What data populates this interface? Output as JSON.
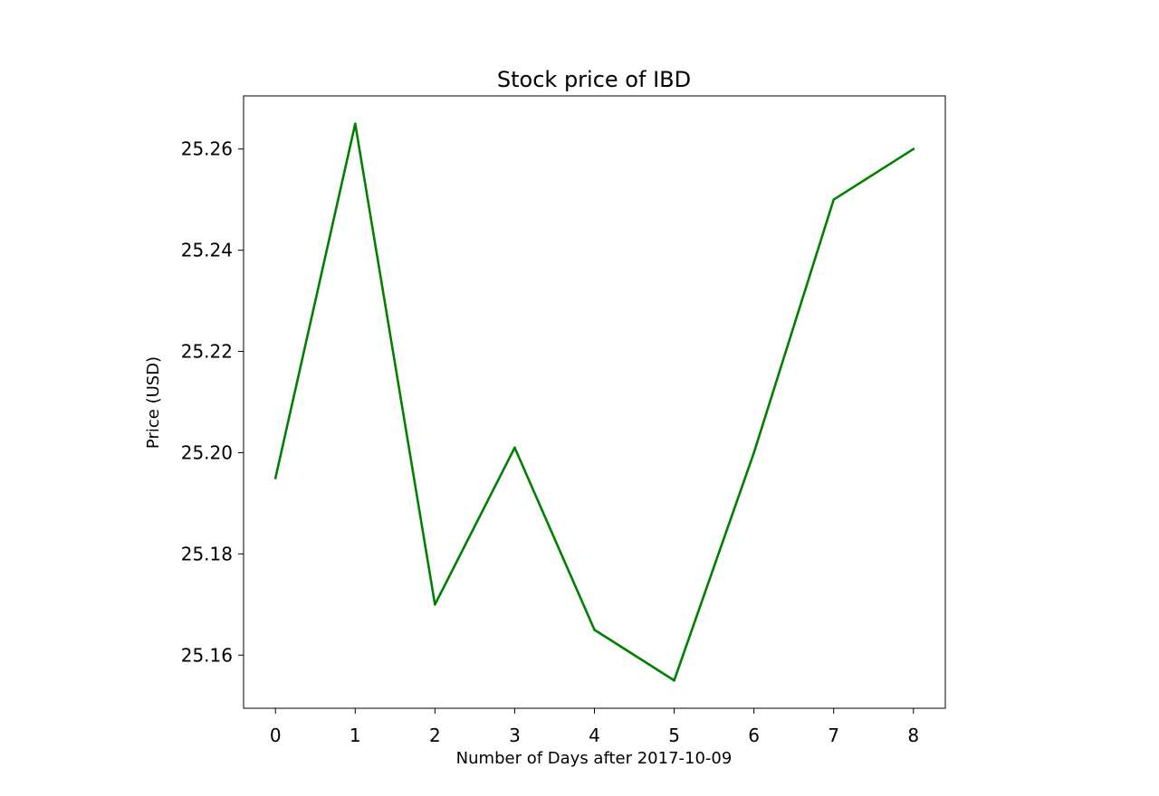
{
  "chart_data": {
    "type": "line",
    "title": "Stock price of IBD",
    "xlabel": "Number of Days after 2017-10-09",
    "ylabel": "Price (USD)",
    "x": [
      0,
      1,
      2,
      3,
      4,
      5,
      6,
      7,
      8
    ],
    "x_ticks": [
      0,
      1,
      2,
      3,
      4,
      5,
      6,
      7,
      8
    ],
    "xlim": [
      -0.4,
      8.4
    ],
    "y_ticks": [
      25.16,
      25.18,
      25.2,
      25.22,
      25.24,
      25.26
    ],
    "y_tick_labels": [
      "25.16",
      "25.18",
      "25.20",
      "25.22",
      "25.24",
      "25.26"
    ],
    "ylim": [
      25.1495,
      25.2705
    ],
    "grid": false,
    "series": [
      {
        "color": "#008000",
        "values": [
          25.195,
          25.265,
          25.17,
          25.201,
          25.165,
          25.155,
          25.2,
          25.25,
          25.26
        ]
      }
    ]
  }
}
